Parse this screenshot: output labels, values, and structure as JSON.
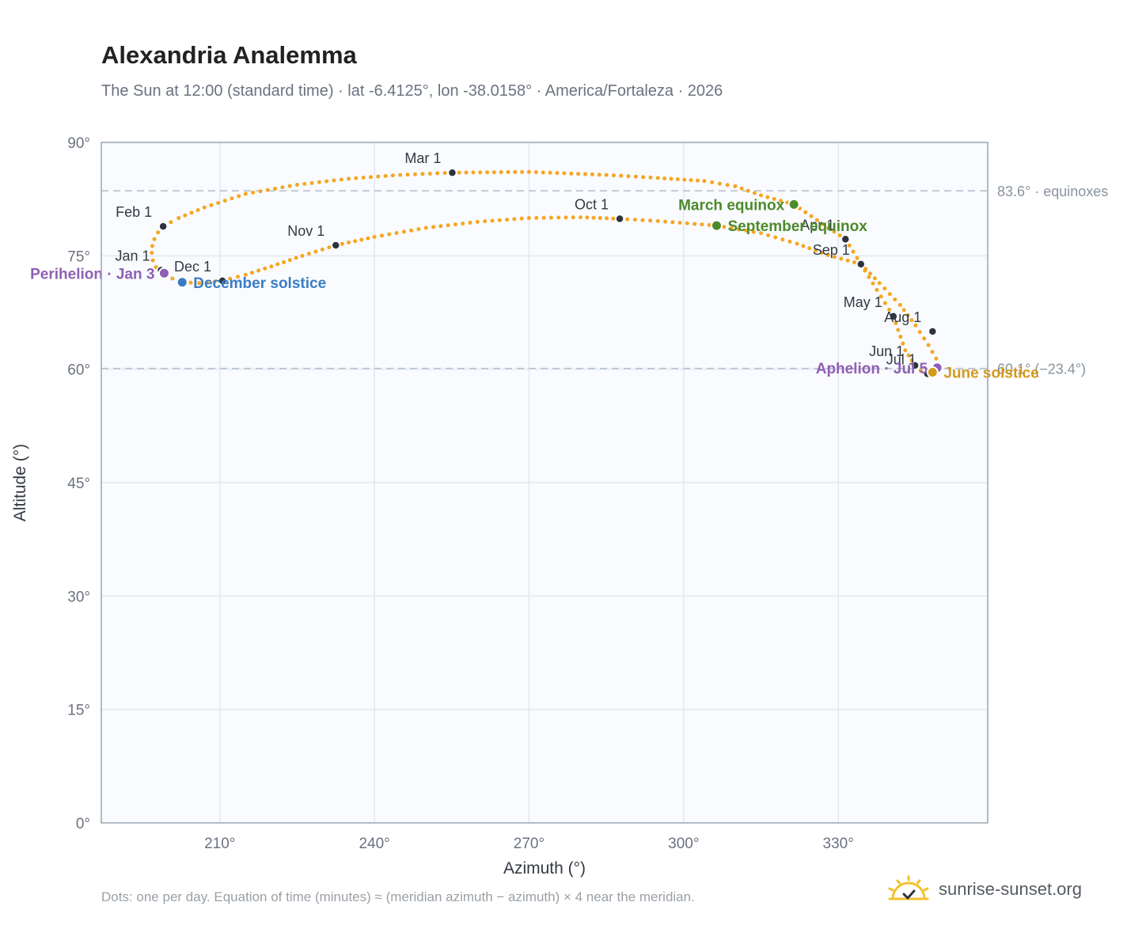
{
  "title": "Alexandria Analemma",
  "subtitle": "The Sun at 12:00 (standard time) · lat -6.4125°, lon -38.0158° · America/Fortaleza · 2026",
  "footer": "Dots: one per day. Equation of time (minutes) ≈ (meridian azimuth − azimuth) × 4 near the meridian.",
  "brand": {
    "name": "sunrise-sunset.org",
    "icon": "sun-logo-icon"
  },
  "colors": {
    "path": "#f5a623",
    "month_dot": "#2d3440",
    "perihelion": "#8e5fb5",
    "aphelion": "#8e5fb5",
    "december_solstice": "#3a7cc4",
    "june_solstice": "#d49a1a",
    "equinox": "#4c8a2a",
    "reference_line": "#b8c2cf",
    "plot_bg": "#f9fbfe"
  },
  "chart_data": {
    "type": "scatter",
    "xlabel": "Azimuth (°)",
    "ylabel": "Altitude (°)",
    "xlim": [
      187,
      359
    ],
    "ylim": [
      0,
      90
    ],
    "x_ticks": [
      210,
      240,
      270,
      300,
      330
    ],
    "y_ticks": [
      0,
      15,
      30,
      45,
      60,
      75,
      90
    ],
    "tick_suffix": "°",
    "grid": true,
    "path_points": [
      [
        199.0,
        78.9
      ],
      [
        198.0,
        78.1
      ],
      [
        197.3,
        77.2
      ],
      [
        196.9,
        76.3
      ],
      [
        196.8,
        75.4
      ],
      [
        197.0,
        74.4
      ],
      [
        197.6,
        73.5
      ],
      [
        198.5,
        73.0
      ],
      [
        199.2,
        72.7
      ],
      [
        200.8,
        72.0
      ],
      [
        202.7,
        71.5
      ],
      [
        206.0,
        71.4
      ],
      [
        210.5,
        71.7
      ],
      [
        215.0,
        72.5
      ],
      [
        220.0,
        73.6
      ],
      [
        226.0,
        75.0
      ],
      [
        232.5,
        76.4
      ],
      [
        240.0,
        77.5
      ],
      [
        250.0,
        78.7
      ],
      [
        260.0,
        79.5
      ],
      [
        270.0,
        80.0
      ],
      [
        280.0,
        80.1
      ],
      [
        287.6,
        79.9
      ],
      [
        295.0,
        79.6
      ],
      [
        306.4,
        79.0
      ],
      [
        315.0,
        78.0
      ],
      [
        322.0,
        76.6
      ],
      [
        328.0,
        75.1
      ],
      [
        334.4,
        73.9
      ],
      [
        338.0,
        71.4
      ],
      [
        342.0,
        68.5
      ],
      [
        345.0,
        65.8
      ],
      [
        347.5,
        63.2
      ],
      [
        349.0,
        61.4
      ],
      [
        349.2,
        60.5
      ],
      [
        348.5,
        59.8
      ],
      [
        347.3,
        59.4
      ],
      [
        346.0,
        59.8
      ],
      [
        344.9,
        60.5
      ],
      [
        343.0,
        62.5
      ],
      [
        340.7,
        67.0
      ],
      [
        337.5,
        70.5
      ],
      [
        334.4,
        73.9
      ],
      [
        331.4,
        77.2
      ],
      [
        327.0,
        79.2
      ],
      [
        321.4,
        81.8
      ],
      [
        315.0,
        83.0
      ],
      [
        310.0,
        84.2
      ],
      [
        304.0,
        84.9
      ],
      [
        295.0,
        85.3
      ],
      [
        285.0,
        85.7
      ],
      [
        270.0,
        86.1
      ],
      [
        255.1,
        86.0
      ],
      [
        245.0,
        85.7
      ],
      [
        235.0,
        85.2
      ],
      [
        225.0,
        84.4
      ],
      [
        215.0,
        83.2
      ],
      [
        207.0,
        81.4
      ],
      [
        202.0,
        80.0
      ],
      [
        199.0,
        78.9
      ]
    ],
    "month_markers": [
      {
        "label": "Jan 1",
        "az": 198.6,
        "alt": 73.1
      },
      {
        "label": "Feb 1",
        "az": 199.0,
        "alt": 78.9
      },
      {
        "label": "Mar 1",
        "az": 255.1,
        "alt": 86.0
      },
      {
        "label": "Apr 1",
        "az": 331.4,
        "alt": 77.2
      },
      {
        "label": "May 1",
        "az": 340.7,
        "alt": 67.0
      },
      {
        "label": "Jun 1",
        "az": 344.9,
        "alt": 60.5
      },
      {
        "label": "Jul 1",
        "az": 347.3,
        "alt": 59.4
      },
      {
        "label": "Aug 1",
        "az": 348.3,
        "alt": 65.0
      },
      {
        "label": "Sep 1",
        "az": 334.4,
        "alt": 73.9
      },
      {
        "label": "Oct 1",
        "az": 287.6,
        "alt": 79.9
      },
      {
        "label": "Nov 1",
        "az": 232.5,
        "alt": 76.4
      },
      {
        "label": "Dec 1",
        "az": 210.5,
        "alt": 71.7
      }
    ],
    "events": [
      {
        "label": "Perihelion · Jan 3",
        "az": 199.2,
        "alt": 72.7,
        "color_key": "perihelion",
        "label_side": "left"
      },
      {
        "label": "December solstice",
        "az": 202.7,
        "alt": 71.5,
        "color_key": "december_solstice",
        "label_side": "right"
      },
      {
        "label": "March equinox",
        "az": 321.4,
        "alt": 81.8,
        "color_key": "equinox",
        "label_side": "left"
      },
      {
        "label": "September equinox",
        "az": 306.4,
        "alt": 79.0,
        "color_key": "equinox",
        "label_side": "right"
      },
      {
        "label": "Aphelion · Jul 5",
        "az": 349.2,
        "alt": 60.2,
        "color_key": "aphelion",
        "label_side": "left"
      },
      {
        "label": "June solstice",
        "az": 348.3,
        "alt": 59.6,
        "color_key": "june_solstice",
        "label_side": "right"
      }
    ],
    "reference_lines": [
      {
        "value": 83.6,
        "label": "83.6° · equinoxes"
      },
      {
        "value": 60.1,
        "label": "60.1° (−23.4°)"
      }
    ]
  }
}
